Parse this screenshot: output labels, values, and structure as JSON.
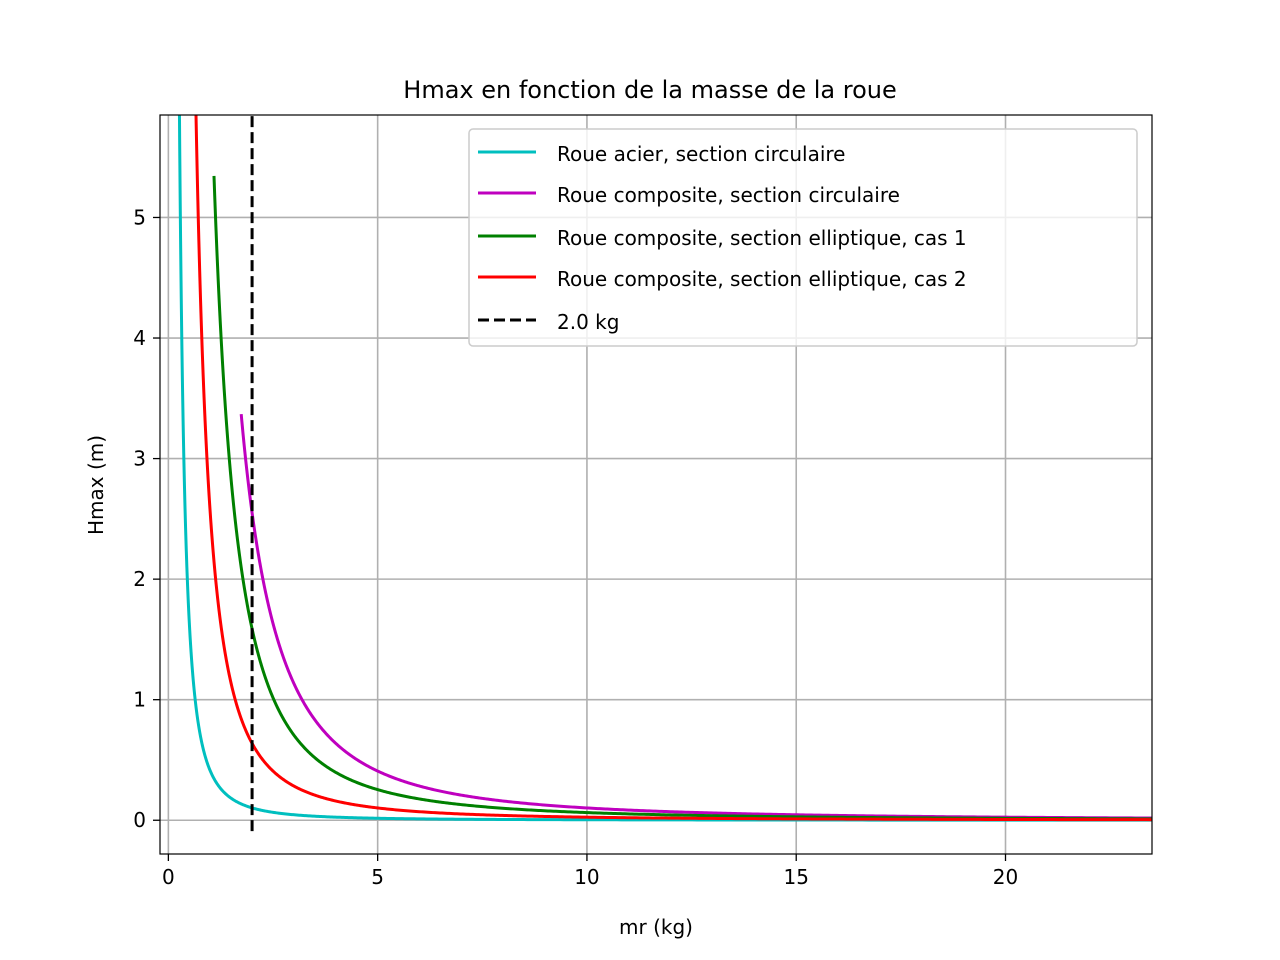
{
  "chart_data": {
    "type": "line",
    "title": "Hmax en fonction de la masse de la roue",
    "xlabel": "mr (kg)",
    "ylabel": "Hmax (m)",
    "xlim": [
      -0.2,
      23.5
    ],
    "ylim": [
      -0.28,
      5.85
    ],
    "xticks": [
      0,
      5,
      10,
      15,
      20
    ],
    "yticks": [
      0,
      1,
      2,
      3,
      4,
      5
    ],
    "grid": true,
    "legend_position": "top-right",
    "series": [
      {
        "name": "Roue acier, section circulaire",
        "color": "#00bfbf",
        "style": "solid",
        "k": 0.41,
        "x_start": 0.07,
        "x_end": 23.5
      },
      {
        "name": "Roue composite, section circulaire",
        "color": "#bf00bf",
        "style": "solid",
        "k": 10.2,
        "x_start": 1.74,
        "x_end": 23.5
      },
      {
        "name": "Roue composite, section elliptique, cas 1",
        "color": "#008000",
        "style": "solid",
        "k": 6.35,
        "x_start": 1.09,
        "x_end": 23.5
      },
      {
        "name": "Roue composite, section elliptique, cas 2",
        "color": "#ff0000",
        "style": "solid",
        "k": 2.55,
        "x_start": 0.44,
        "x_end": 23.5
      }
    ],
    "vline": {
      "name": "2.0 kg",
      "x": 2.0,
      "color": "#000000",
      "style": "dashed",
      "y_range": [
        -0.09,
        5.85
      ]
    }
  }
}
